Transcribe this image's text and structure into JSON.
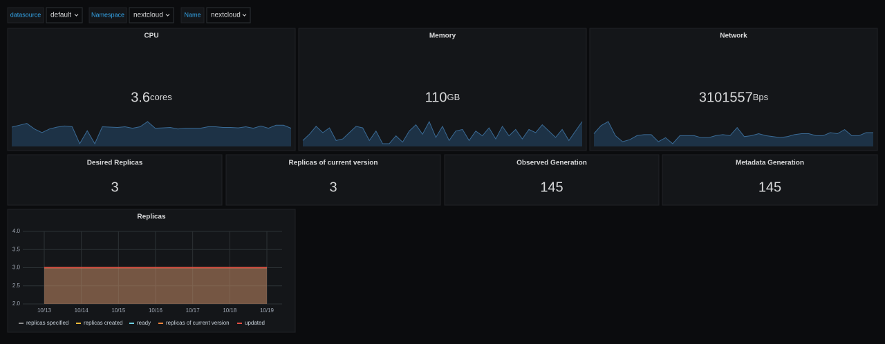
{
  "variables": [
    {
      "label": "datasource",
      "value": "default"
    },
    {
      "label": "Namespace",
      "value": "nextcloud"
    },
    {
      "label": "Name",
      "value": "nextcloud"
    }
  ],
  "stats": [
    {
      "title": "CPU",
      "value": 3.6,
      "unit": "cores",
      "sparkline": [
        3.65,
        3.7,
        3.75,
        3.6,
        3.5,
        3.6,
        3.65,
        3.68,
        3.66,
        3.2,
        3.55,
        3.2,
        3.66,
        3.65,
        3.64,
        3.66,
        3.62,
        3.66,
        3.8,
        3.62,
        3.63,
        3.64,
        3.6,
        3.62,
        3.62,
        3.62,
        3.66,
        3.66,
        3.64,
        3.64,
        3.63,
        3.66,
        3.62,
        3.68,
        3.62,
        3.7,
        3.7,
        3.62
      ]
    },
    {
      "title": "Memory",
      "value": 110,
      "unit": "GB",
      "sparkline": [
        104,
        108,
        113,
        109,
        112,
        104,
        105,
        109,
        113,
        112,
        104,
        110,
        102,
        102,
        107,
        103,
        110,
        114,
        108,
        116,
        106,
        113,
        104,
        110,
        111,
        104,
        110,
        107,
        112,
        105,
        113,
        107,
        111,
        105,
        111,
        109,
        114,
        110,
        106,
        111,
        104,
        110,
        116
      ]
    },
    {
      "title": "Network",
      "value": 3101557,
      "unit": "Bps",
      "sparkline": [
        3000000,
        3400000,
        3600000,
        2900000,
        2600000,
        2700000,
        2900000,
        2950000,
        2950000,
        2600000,
        2800000,
        2500000,
        2900000,
        2900000,
        2900000,
        2800000,
        2800000,
        2900000,
        2950000,
        2900000,
        3300000,
        2850000,
        2900000,
        3000000,
        2900000,
        2850000,
        2800000,
        2850000,
        2950000,
        3000000,
        3000000,
        2900000,
        2900000,
        3050000,
        3000000,
        3200000,
        2900000,
        2900000,
        3050000,
        3050000
      ]
    }
  ],
  "singlestats": [
    {
      "title": "Desired Replicas",
      "value": 3
    },
    {
      "title": "Replicas of current version",
      "value": 3
    },
    {
      "title": "Observed Generation",
      "value": 145
    },
    {
      "title": "Metadata Generation",
      "value": 145
    }
  ],
  "chart_data": {
    "type": "line",
    "title": "Replicas",
    "categories": [
      "10/13",
      "10/14",
      "10/15",
      "10/16",
      "10/17",
      "10/18",
      "10/19"
    ],
    "series": [
      {
        "name": "replicas specified",
        "color": "#8e8e8e",
        "values": [
          3,
          3,
          3,
          3,
          3,
          3,
          3
        ]
      },
      {
        "name": "replicas created",
        "color": "#eab839",
        "values": [
          3,
          3,
          3,
          3,
          3,
          3,
          3
        ]
      },
      {
        "name": "ready",
        "color": "#6ed0e0",
        "values": [
          3,
          3,
          3,
          3,
          3,
          3,
          3
        ]
      },
      {
        "name": "replicas of current version",
        "color": "#ef843c",
        "values": [
          3,
          3,
          3,
          3,
          3,
          3,
          3
        ]
      },
      {
        "name": "updated",
        "color": "#e24d42",
        "values": [
          3,
          3,
          3,
          3,
          3,
          3,
          3
        ]
      }
    ],
    "ylim": [
      2,
      4
    ],
    "yticks": [
      {
        "value": 2,
        "label": "2.0"
      },
      {
        "value": 2.5,
        "label": "2.5"
      },
      {
        "value": 3,
        "label": "3.0"
      },
      {
        "value": 3.5,
        "label": "3.5"
      },
      {
        "value": 4,
        "label": "4.0"
      }
    ],
    "grid": true
  }
}
